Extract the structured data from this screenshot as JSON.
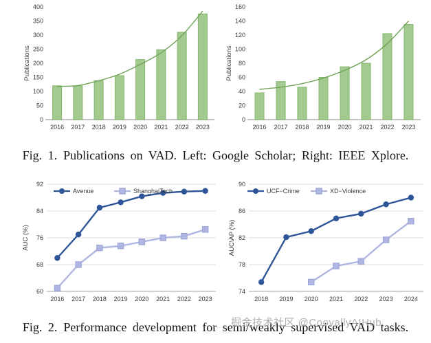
{
  "page": {
    "background": "#ffffff"
  },
  "figure1": {
    "caption_label": "Fig. 1.",
    "caption_text": "Publications on VAD. Left: Google Scholar; Right: IEEE Xplore."
  },
  "figure2": {
    "caption_label": "Fig. 2.",
    "caption_text": "Performance development for semi/weakly supervised VAD tasks."
  },
  "watermark": "掘金技术社区 @CoovallyAIHub",
  "colors": {
    "bar_fill": "#A3CB90",
    "bar_stroke": "#84B56C",
    "trend": "#6FA355",
    "series_dark": "#2E5597",
    "series_light": "#AFB6E2",
    "series_light_stroke": "#98A1D8",
    "grid": "#DEDEDE",
    "axis": "#C2C2C2",
    "tick_text": "#3A3A3A"
  },
  "chart_data": [
    {
      "type": "bar",
      "name": "publications-google-scholar",
      "categories": [
        "2016",
        "2017",
        "2018",
        "2019",
        "2020",
        "2021",
        "2022",
        "2023"
      ],
      "values": [
        120,
        120,
        138,
        156,
        213,
        248,
        310,
        375
      ],
      "trend": [
        118,
        121,
        138,
        161,
        196,
        237,
        298,
        385
      ],
      "title": "",
      "xlabel": "",
      "ylabel": "Publications",
      "ylim": [
        0,
        400
      ],
      "ystep": 50,
      "grid": false
    },
    {
      "type": "bar",
      "name": "publications-ieee-xplore",
      "categories": [
        "2016",
        "2017",
        "2018",
        "2019",
        "2020",
        "2021",
        "2022",
        "2023"
      ],
      "values": [
        38,
        54,
        46,
        60,
        75,
        80,
        122,
        135
      ],
      "trend": [
        43,
        46,
        51,
        59,
        70,
        85,
        108,
        140
      ],
      "title": "",
      "xlabel": "",
      "ylabel": "Publications",
      "ylim": [
        0,
        160
      ],
      "ystep": 20,
      "grid": false
    },
    {
      "type": "line",
      "name": "auc-semi-supervised",
      "categories": [
        "2016",
        "2017",
        "2018",
        "2019",
        "2020",
        "2021",
        "2022",
        "2023"
      ],
      "series": [
        {
          "name": "Avenue",
          "marker": "circle",
          "values": [
            70,
            77,
            85,
            86.6,
            88.4,
            89.4,
            89.8,
            90
          ]
        },
        {
          "name": "ShanghaiTech",
          "marker": "square",
          "values": [
            61,
            68,
            73,
            73.6,
            74.8,
            76,
            76.5,
            78.5
          ]
        }
      ],
      "title": "",
      "xlabel": "",
      "ylabel": "AUC (%)",
      "ylim": [
        60,
        92
      ],
      "ystep": 8,
      "grid": true,
      "legend_position": "top-left"
    },
    {
      "type": "line",
      "name": "auc-ap-weakly-supervised",
      "categories": [
        "2018",
        "2019",
        "2020",
        "2021",
        "2022",
        "2023",
        "2024"
      ],
      "series": [
        {
          "name": "UCF−Crime",
          "marker": "circle",
          "values": [
            75.4,
            82.1,
            83,
            84.9,
            85.6,
            87,
            88
          ]
        },
        {
          "name": "XD−Violence",
          "marker": "square",
          "values": [
            null,
            null,
            75.4,
            77.8,
            78.5,
            81.7,
            84.5
          ]
        }
      ],
      "title": "",
      "xlabel": "",
      "ylabel": "AUC\\AP (%)",
      "ylim": [
        74,
        90
      ],
      "ystep": 4,
      "grid": true,
      "legend_position": "top-left"
    }
  ]
}
